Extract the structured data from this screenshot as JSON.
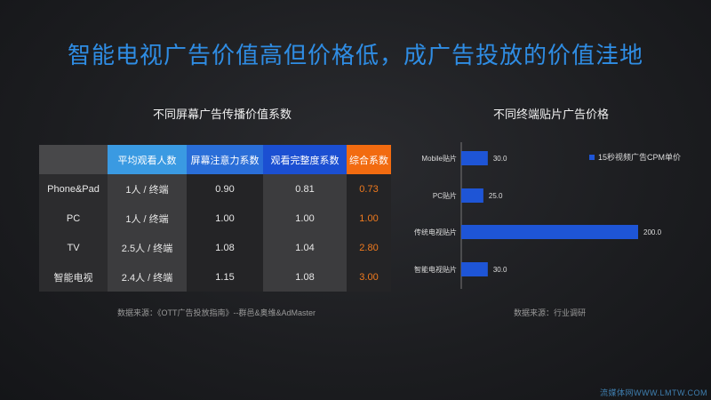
{
  "title": "智能电视广告价值高但价格低，成广告投放的价值洼地",
  "table": {
    "heading": "不同屏幕广告传播价值系数",
    "headers": [
      "",
      "平均观看人数",
      "屏幕注意力系数",
      "观看完整度系数",
      "综合系数"
    ],
    "rows": [
      [
        "Phone&Pad",
        "1人 / 终端",
        "0.90",
        "0.81",
        "0.73"
      ],
      [
        "PC",
        "1人 / 终端",
        "1.00",
        "1.00",
        "1.00"
      ],
      [
        "TV",
        "2.5人 / 终端",
        "1.08",
        "1.04",
        "2.80"
      ],
      [
        "智能电视",
        "2.4人 / 终端",
        "1.15",
        "1.08",
        "3.00"
      ]
    ],
    "source": "数据来源：《OTT广告投放指南》--群邑&奥维&AdMaster"
  },
  "chart_data": {
    "type": "bar",
    "orientation": "horizontal",
    "title": "不同终端贴片广告价格",
    "categories": [
      "Mobile贴片",
      "PC贴片",
      "传统电视贴片",
      "智能电视贴片"
    ],
    "series": [
      {
        "name": "15秒视频广告CPM单价",
        "values": [
          30.0,
          25.0,
          200.0,
          30.0
        ],
        "color": "#1e55d6"
      }
    ],
    "value_labels": [
      "30.0",
      "25.0",
      "200.0",
      "30.0"
    ],
    "xlim": [
      0,
      200
    ],
    "legend": "top-right",
    "source": "数据来源：行业调研"
  },
  "watermark": "流媒体网WWW.LMTW.COM"
}
